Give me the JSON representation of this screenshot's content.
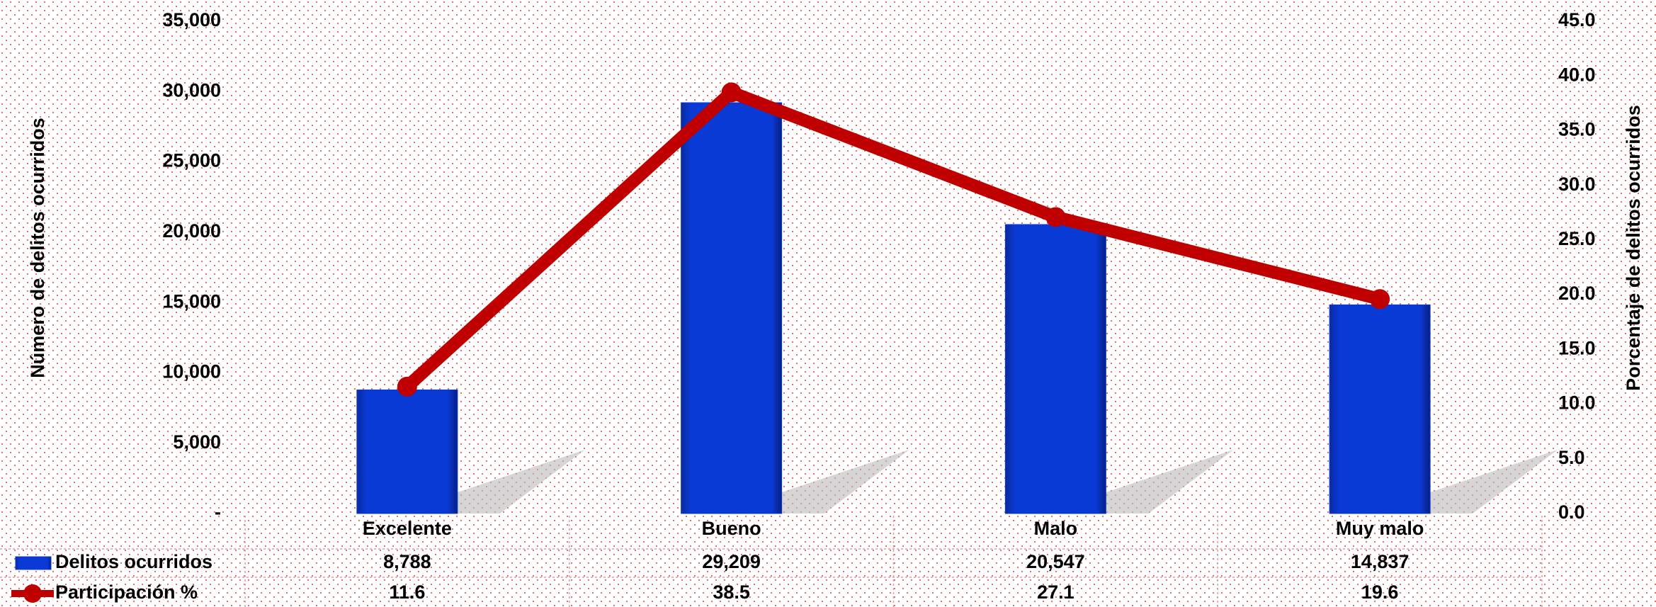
{
  "chart_data": {
    "type": "bar_line",
    "categories": [
      "Excelente",
      "Bueno",
      "Malo",
      "Muy malo"
    ],
    "series": [
      {
        "name": "Delitos ocurridos",
        "type": "bar",
        "color": "#0a3ad6",
        "values": [
          8788,
          29209,
          20547,
          14837
        ],
        "value_labels": [
          "8,788",
          "29,209",
          "20,547",
          "14,837"
        ]
      },
      {
        "name": "Participación %",
        "type": "line",
        "axis": "y2",
        "color": "#c00000",
        "values": [
          11.6,
          38.5,
          27.1,
          19.6
        ]
      }
    ],
    "ylabel": "Número de delitos ocurridos",
    "y2label": "Porcentaje de delitos ocurridos",
    "ylim": [
      0,
      35000
    ],
    "yticks": [
      {
        "value": 0,
        "label": "-"
      },
      {
        "value": 5000,
        "label": "5,000"
      },
      {
        "value": 10000,
        "label": "10,000"
      },
      {
        "value": 15000,
        "label": "15,000"
      },
      {
        "value": 20000,
        "label": "20,000"
      },
      {
        "value": 25000,
        "label": "25,000"
      },
      {
        "value": 30000,
        "label": "30,000"
      },
      {
        "value": 35000,
        "label": "35,000"
      }
    ],
    "y2lim": [
      0,
      45
    ],
    "y2ticks": [
      {
        "value": 0,
        "label": "0.0"
      },
      {
        "value": 5,
        "label": "5.0"
      },
      {
        "value": 10,
        "label": "10.0"
      },
      {
        "value": 15,
        "label": "15.0"
      },
      {
        "value": 20,
        "label": "20.0"
      },
      {
        "value": 25,
        "label": "25.0"
      },
      {
        "value": 30,
        "label": "30.0"
      },
      {
        "value": 35,
        "label": "35.0"
      },
      {
        "value": 40,
        "label": "40.0"
      },
      {
        "value": 45,
        "label": "45.0"
      }
    ],
    "data_table": true
  }
}
